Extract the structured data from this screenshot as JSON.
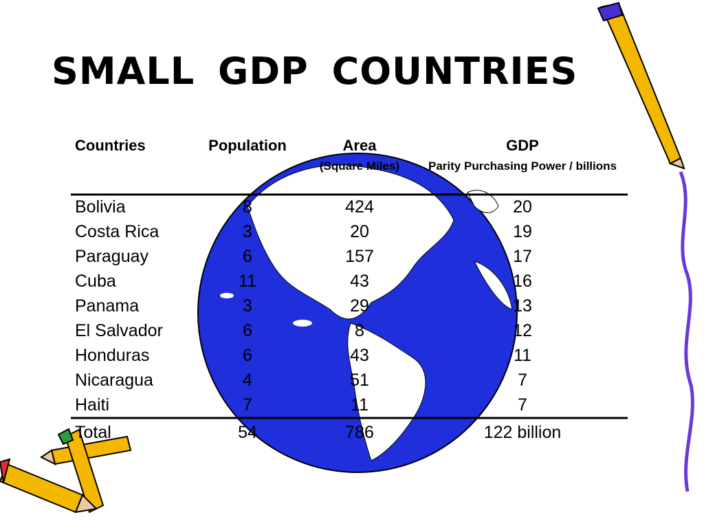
{
  "title": "SMALL GDP COUNTRIES",
  "table": {
    "columns": [
      {
        "label": "Countries"
      },
      {
        "label": "Population"
      },
      {
        "label": "Area",
        "note": "(Square Miles)"
      },
      {
        "label": "GDP",
        "note": "Parity Purchasing Power / billions"
      }
    ],
    "rows": [
      [
        "Bolivia",
        8,
        424,
        20
      ],
      [
        "Costa Rica",
        3,
        20,
        19
      ],
      [
        "Paraguay",
        6,
        157,
        17
      ],
      [
        "Cuba",
        11,
        43,
        16
      ],
      [
        "Panama",
        3,
        29,
        13
      ],
      [
        "El Salvador",
        6,
        8,
        12
      ],
      [
        "Honduras",
        6,
        43,
        11
      ],
      [
        "Nicaragua",
        4,
        51,
        7
      ],
      [
        "Haiti",
        7,
        11,
        7
      ]
    ],
    "total": [
      "Total",
      54,
      786,
      "122 billion"
    ]
  }
}
